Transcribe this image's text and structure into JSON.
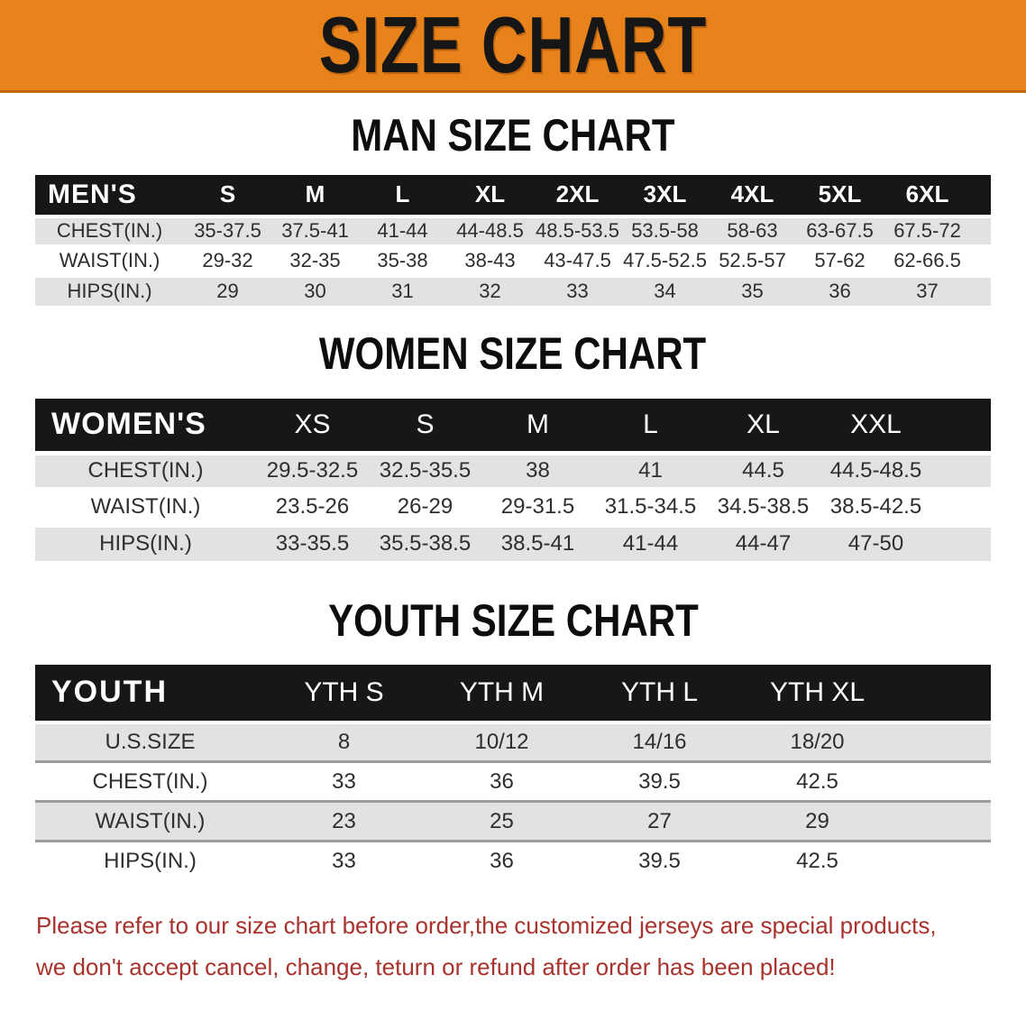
{
  "banner": {
    "title": "SIZE CHART",
    "bg_color": "#E8821B",
    "text_color": "#161616"
  },
  "colors": {
    "table_header_bar": "#171717",
    "row_stripe": "#E2E2E2",
    "disclaimer_red": "#A8332D"
  },
  "sections": [
    {
      "heading": "MAN SIZE CHART",
      "table": {
        "label": "MEN'S",
        "columns": [
          "S",
          "M",
          "L",
          "XL",
          "2XL",
          "3XL",
          "4XL",
          "5XL",
          "6XL"
        ],
        "rows": [
          {
            "label": "CHEST(IN.)",
            "values": [
              "35-37.5",
              "37.5-41",
              "41-44",
              "44-48.5",
              "48.5-53.5",
              "53.5-58",
              "58-63",
              "63-67.5",
              "67.5-72"
            ]
          },
          {
            "label": "WAIST(IN.)",
            "values": [
              "29-32",
              "32-35",
              "35-38",
              "38-43",
              "43-47.5",
              "47.5-52.5",
              "52.5-57",
              "57-62",
              "62-66.5"
            ]
          },
          {
            "label": "HIPS(IN.)",
            "values": [
              "29",
              "30",
              "31",
              "32",
              "33",
              "34",
              "35",
              "36",
              "37"
            ]
          }
        ]
      }
    },
    {
      "heading": "WOMEN SIZE CHART",
      "table": {
        "label": "WOMEN'S",
        "columns": [
          "XS",
          "S",
          "M",
          "L",
          "XL",
          "XXL"
        ],
        "rows": [
          {
            "label": "CHEST(IN.)",
            "values": [
              "29.5-32.5",
              "32.5-35.5",
              "38",
              "41",
              "44.5",
              "44.5-48.5"
            ]
          },
          {
            "label": "WAIST(IN.)",
            "values": [
              "23.5-26",
              "26-29",
              "29-31.5",
              "31.5-34.5",
              "34.5-38.5",
              "38.5-42.5"
            ]
          },
          {
            "label": "HIPS(IN.)",
            "values": [
              "33-35.5",
              "35.5-38.5",
              "38.5-41",
              "41-44",
              "44-47",
              "47-50"
            ]
          }
        ]
      }
    },
    {
      "heading": "YOUTH SIZE CHART",
      "table": {
        "label": "YOUTH",
        "columns": [
          "YTH S",
          "YTH M",
          "YTH L",
          "YTH XL"
        ],
        "rows": [
          {
            "label": "U.S.SIZE",
            "values": [
              "8",
              "10/12",
              "14/16",
              "18/20"
            ]
          },
          {
            "label": "CHEST(IN.)",
            "values": [
              "33",
              "36",
              "39.5",
              "42.5"
            ]
          },
          {
            "label": "WAIST(IN.)",
            "values": [
              "23",
              "25",
              "27",
              "29"
            ]
          },
          {
            "label": "HIPS(IN.)",
            "values": [
              "33",
              "36",
              "39.5",
              "42.5"
            ]
          }
        ]
      }
    }
  ],
  "disclaimer": {
    "lines": [
      "Please refer to our size chart before order,the customized jerseys are special products,",
      "we don't accept cancel, change, teturn or refund after order has been placed!"
    ]
  }
}
